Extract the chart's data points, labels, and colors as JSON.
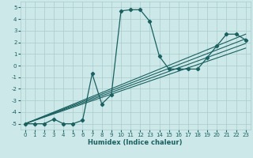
{
  "xlabel": "Humidex (Indice chaleur)",
  "bg_color": "#cce8e8",
  "grid_color": "#aacccc",
  "line_color": "#1a6060",
  "xlim": [
    -0.5,
    23.5
  ],
  "ylim": [
    -5.5,
    5.5
  ],
  "xticks": [
    0,
    1,
    2,
    3,
    4,
    5,
    6,
    7,
    8,
    9,
    10,
    11,
    12,
    13,
    14,
    15,
    16,
    17,
    18,
    19,
    20,
    21,
    22,
    23
  ],
  "yticks": [
    -5,
    -4,
    -3,
    -2,
    -1,
    0,
    1,
    2,
    3,
    4,
    5
  ],
  "main_x": [
    0,
    1,
    2,
    3,
    4,
    5,
    6,
    7,
    8,
    9,
    10,
    11,
    12,
    13,
    14,
    15,
    16,
    17,
    18,
    19,
    20,
    21,
    22,
    23
  ],
  "main_y": [
    -5,
    -5,
    -5,
    -4.6,
    -5,
    -5,
    -4.7,
    -0.7,
    -3.3,
    -2.5,
    4.7,
    4.8,
    4.8,
    3.8,
    0.8,
    -0.3,
    -0.3,
    -0.3,
    -0.3,
    0.7,
    1.7,
    2.7,
    2.7,
    2.2
  ],
  "linear_lines": [
    {
      "x": [
        0,
        23
      ],
      "y": [
        -5,
        1.5
      ]
    },
    {
      "x": [
        0,
        23
      ],
      "y": [
        -5,
        1.9
      ]
    },
    {
      "x": [
        0,
        23
      ],
      "y": [
        -5,
        2.3
      ]
    },
    {
      "x": [
        0,
        23
      ],
      "y": [
        -5,
        2.7
      ]
    }
  ],
  "xlabel_fontsize": 6,
  "tick_fontsize": 5
}
